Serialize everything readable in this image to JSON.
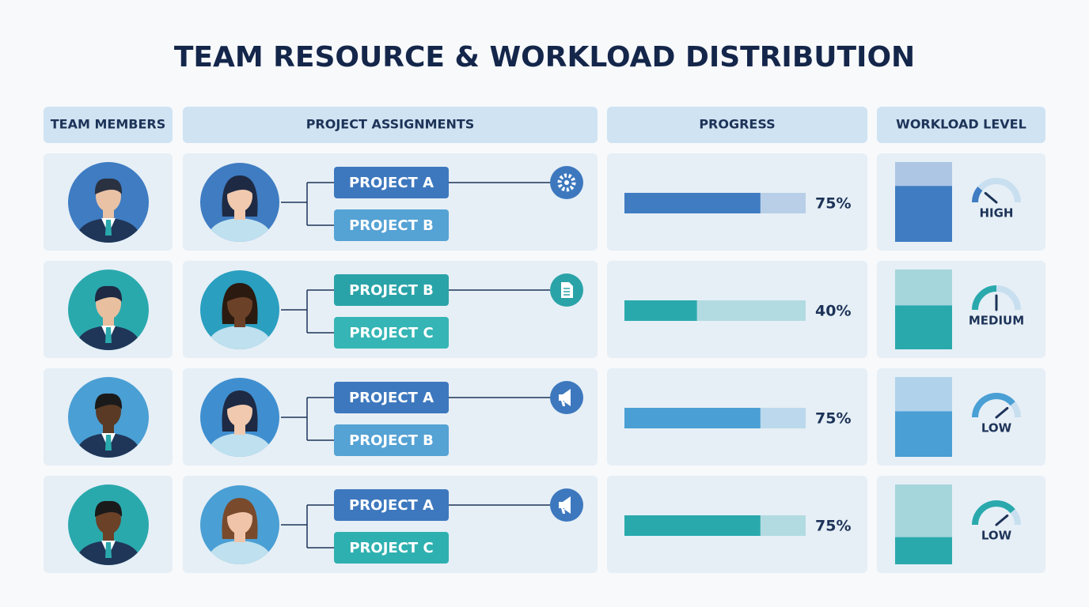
{
  "title": "TEAM RESOURCE & WORKLOAD DISTRIBUTION",
  "headers": [
    "TEAM MEMBERS",
    "PROJECT ASSIGNMENTS",
    "PROGRESS",
    "WORKLOAD LEVEL"
  ],
  "rows": [
    {
      "color": "#3f7cc2",
      "projects": [
        {
          "name": "PROJECT A",
          "color": "#3d78be"
        },
        {
          "name": "PROJECT B",
          "color": "#55a2d4"
        }
      ],
      "progress": {
        "value": 75,
        "label": "75%"
      },
      "workload": {
        "level": "HIGH",
        "fill": 70
      }
    },
    {
      "color": "#2aa9ad",
      "projects": [
        {
          "name": "PROJECT B",
          "color": "#2aa3a8"
        },
        {
          "name": "PROJECT C",
          "color": "#35b5b5"
        }
      ],
      "progress": {
        "value": 40,
        "label": "40%"
      },
      "workload": {
        "level": "MEDIUM",
        "fill": 55
      }
    },
    {
      "color": "#4a9fd4",
      "projects": [
        {
          "name": "PROJECT A",
          "color": "#3d78be"
        },
        {
          "name": "PROJECT B",
          "color": "#55a2d4"
        }
      ],
      "progress": {
        "value": 75,
        "label": "75%"
      },
      "workload": {
        "level": "LOW",
        "fill": 57
      }
    },
    {
      "color": "#2aa9ad",
      "projects": [
        {
          "name": "PROJECT A",
          "color": "#3d78be"
        },
        {
          "name": "PROJECT C",
          "color": "#2fb0b0"
        }
      ],
      "progress": {
        "value": 75,
        "label": "75%"
      },
      "workload": {
        "level": "LOW",
        "fill": 34
      }
    }
  ]
}
